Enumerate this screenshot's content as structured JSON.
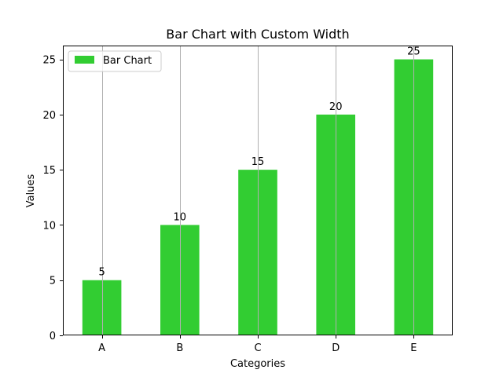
{
  "chart_data": {
    "type": "bar",
    "title": "Bar Chart with Custom Width",
    "xlabel": "Categories",
    "ylabel": "Values",
    "categories": [
      "A",
      "B",
      "C",
      "D",
      "E"
    ],
    "series": [
      {
        "name": "Bar Chart",
        "values": [
          5,
          10,
          15,
          20,
          25
        ]
      }
    ],
    "data_labels": [
      "5",
      "10",
      "15",
      "20",
      "25"
    ],
    "ylim": [
      0,
      26.25
    ],
    "yticks": [
      0,
      5,
      10,
      15,
      20,
      25
    ],
    "bar_width": 0.5,
    "grid": {
      "x": true,
      "y": false
    },
    "legend": {
      "position": "top-left"
    },
    "colors": {
      "bar": "#32cd32",
      "grid": "#b0b0b0",
      "axis": "#000000"
    }
  }
}
